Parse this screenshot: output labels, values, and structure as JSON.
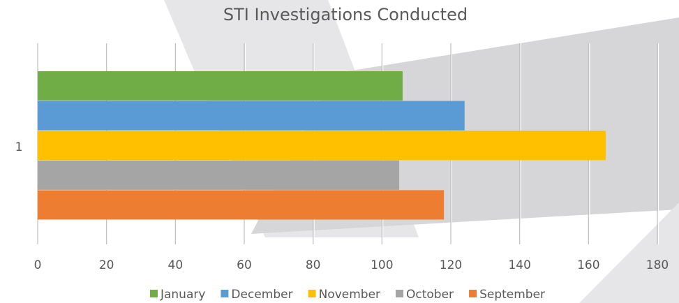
{
  "chart_data": {
    "type": "bar",
    "orientation": "horizontal",
    "title": "STI Investigations Conducted",
    "categories": [
      "1"
    ],
    "series": [
      {
        "name": "January",
        "color": "#70ad47",
        "values": [
          106
        ]
      },
      {
        "name": "December",
        "color": "#5b9bd5",
        "values": [
          124
        ]
      },
      {
        "name": "November",
        "color": "#ffc000",
        "values": [
          165
        ]
      },
      {
        "name": "October",
        "color": "#a5a5a5",
        "values": [
          105
        ]
      },
      {
        "name": "September",
        "color": "#ed7d31",
        "values": [
          118
        ]
      }
    ],
    "xlim": [
      0,
      180
    ],
    "xticks": [
      0,
      20,
      40,
      60,
      80,
      100,
      120,
      140,
      160,
      180
    ],
    "grid": true,
    "legend": "bottom"
  }
}
